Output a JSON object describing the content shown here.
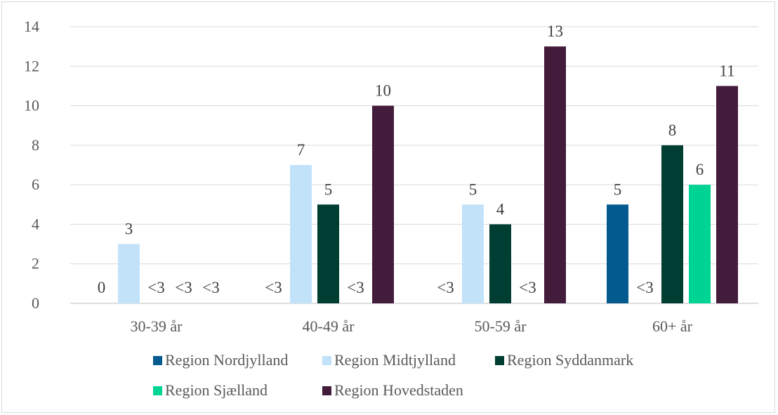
{
  "chart_data": {
    "type": "bar",
    "title": "",
    "xlabel": "",
    "ylabel": "",
    "ylim": [
      0,
      14
    ],
    "yticks": [
      0,
      2,
      4,
      6,
      8,
      10,
      12,
      14
    ],
    "grid": true,
    "legend_position": "bottom",
    "categories": [
      "30-39 år",
      "40-49 år",
      "50-59 år",
      "60+ år"
    ],
    "series": [
      {
        "name": "Region Nordjylland",
        "color": "#025a8e",
        "values": [
          0,
          null,
          null,
          5
        ],
        "labels": [
          "0",
          "<3",
          "<3",
          "5"
        ]
      },
      {
        "name": "Region Midtjylland",
        "color": "#c2e2fa",
        "values": [
          3,
          7,
          5,
          null
        ],
        "labels": [
          "3",
          "7",
          "5",
          "<3"
        ]
      },
      {
        "name": "Region Syddanmark",
        "color": "#003e33",
        "values": [
          null,
          5,
          4,
          8
        ],
        "labels": [
          "<3",
          "5",
          "4",
          "8"
        ]
      },
      {
        "name": "Region Sjælland",
        "color": "#00d494",
        "values": [
          null,
          null,
          null,
          6
        ],
        "labels": [
          "<3",
          "<3",
          "<3",
          "6"
        ]
      },
      {
        "name": "Region Hovedstaden",
        "color": "#431c3c",
        "values": [
          null,
          10,
          13,
          11
        ],
        "labels": [
          "<3",
          "10",
          "13",
          "11"
        ]
      }
    ]
  }
}
